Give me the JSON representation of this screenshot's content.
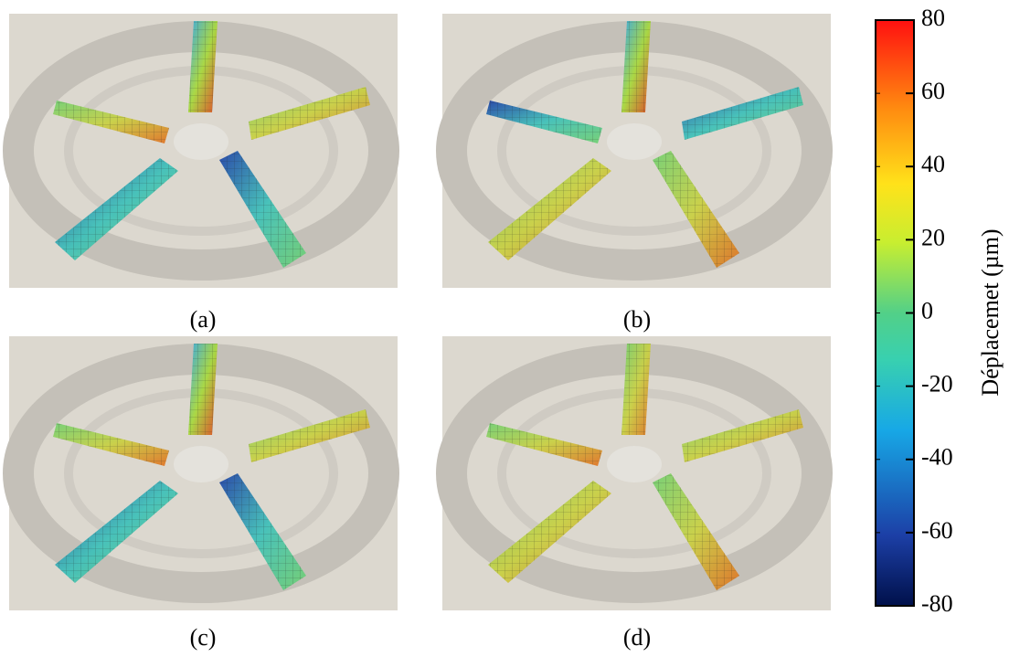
{
  "panels": [
    {
      "label": "(a)"
    },
    {
      "label": "(b)"
    },
    {
      "label": "(c)"
    },
    {
      "label": "(d)"
    }
  ],
  "colorbar": {
    "label": "Déplacemet (µm)",
    "lim": [
      -80,
      80
    ],
    "ticks": [
      80,
      60,
      40,
      20,
      0,
      -20,
      -40,
      -60,
      -80
    ]
  }
}
